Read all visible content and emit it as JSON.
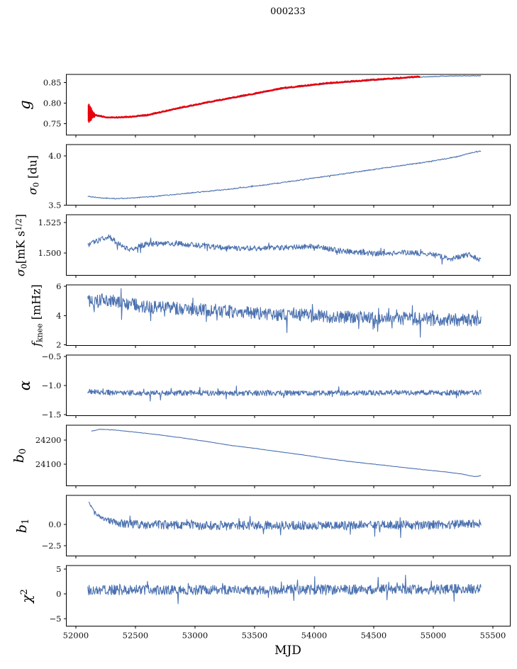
{
  "chart_data": {
    "type": "line",
    "title": "000233",
    "xlabel": "MJD",
    "xlim": [
      51920,
      55646
    ],
    "xticks": [
      52000,
      52500,
      53000,
      53500,
      54000,
      54500,
      55000,
      55500
    ],
    "xtick_labels": [
      "52000",
      "52500",
      "53000",
      "53500",
      "54000",
      "54500",
      "55000",
      "55500"
    ],
    "colors": {
      "blue": "#4c72b0",
      "red": "#e8000b",
      "spine": "#000000",
      "text": "#111111"
    },
    "panels": [
      {
        "id": "g",
        "ylabel_segments": [
          {
            "t": "g",
            "italic": true
          }
        ],
        "ylabel_x": 35,
        "ylabel_size": 21,
        "ylim": [
          0.722,
          0.8695
        ],
        "yticks": [
          {
            "v": 0.75,
            "label": "0.75"
          },
          {
            "v": 0.8,
            "label": "0.80"
          },
          {
            "v": 0.85,
            "label": "0.85"
          }
        ],
        "series": [
          {
            "name": "g-fit-line",
            "color": "#4c72b0",
            "width": 1.2,
            "n": 600,
            "seed": 11,
            "x_start": 52100,
            "x_end": 55400,
            "noise_amp": 0.0007,
            "tail_prob": 0,
            "anchors": [
              [
                52100,
                0.7755
              ],
              [
                52170,
                0.7685
              ],
              [
                52250,
                0.764
              ],
              [
                52330,
                0.7635
              ],
              [
                52450,
                0.765
              ],
              [
                52600,
                0.769
              ],
              [
                52850,
                0.7855
              ],
              [
                53100,
                0.8
              ],
              [
                53390,
                0.8155
              ],
              [
                53745,
                0.835
              ],
              [
                54100,
                0.8465
              ],
              [
                54520,
                0.8555
              ],
              [
                54890,
                0.863
              ],
              [
                55100,
                0.8655
              ],
              [
                55250,
                0.866
              ],
              [
                55400,
                0.8663
              ]
            ]
          },
          {
            "name": "g-measured-line",
            "color": "#e8000b",
            "width": 2.4,
            "n": 460,
            "seed": 12,
            "x_start": 52105,
            "x_end": 54890,
            "noise_amp": 0.0012,
            "tail_prob": 0,
            "anchors": [
              [
                52105,
                0.776
              ],
              [
                52170,
                0.77
              ],
              [
                52250,
                0.7655
              ],
              [
                52330,
                0.765
              ],
              [
                52450,
                0.7665
              ],
              [
                52600,
                0.7705
              ],
              [
                52850,
                0.787
              ],
              [
                53100,
                0.8015
              ],
              [
                53390,
                0.817
              ],
              [
                53745,
                0.8365
              ],
              [
                54100,
                0.848
              ],
              [
                54520,
                0.857
              ],
              [
                54890,
                0.8642
              ]
            ]
          }
        ],
        "errorbars": [
          {
            "x": 52106,
            "y": 0.7755,
            "e": 0.02
          },
          {
            "x": 52110,
            "y": 0.775,
            "e": 0.023
          },
          {
            "x": 52114,
            "y": 0.7745,
            "e": 0.016
          },
          {
            "x": 52119,
            "y": 0.774,
            "e": 0.019
          },
          {
            "x": 52124,
            "y": 0.7735,
            "e": 0.013
          },
          {
            "x": 52129,
            "y": 0.773,
            "e": 0.016
          },
          {
            "x": 52134,
            "y": 0.7725,
            "e": 0.011
          },
          {
            "x": 52140,
            "y": 0.772,
            "e": 0.009
          },
          {
            "x": 52147,
            "y": 0.771,
            "e": 0.007
          },
          {
            "x": 52155,
            "y": 0.77,
            "e": 0.006
          }
        ]
      },
      {
        "id": "sigma0-du",
        "ylabel_segments": [
          {
            "t": "σ",
            "italic": true
          },
          {
            "t": "0",
            "script": "sub"
          },
          {
            "t": " [du]"
          }
        ],
        "ylabel_x": 47,
        "ylabel_size": 16,
        "ylim": [
          3.5,
          4.115
        ],
        "yticks": [
          {
            "v": 3.5,
            "label": "3.5"
          },
          {
            "v": 4.0,
            "label": "4.0"
          }
        ],
        "series": [
          {
            "name": "sigma0-du-line",
            "color": "#4c72b0",
            "width": 1.1,
            "n": 700,
            "seed": 21,
            "x_start": 52100,
            "x_end": 55400,
            "noise_amp": 0.005,
            "tail_prob": 0.02,
            "anchors": [
              [
                52100,
                3.59
              ],
              [
                52200,
                3.575
              ],
              [
                52330,
                3.567
              ],
              [
                52500,
                3.574
              ],
              [
                52700,
                3.594
              ],
              [
                52900,
                3.617
              ],
              [
                53100,
                3.64
              ],
              [
                53300,
                3.664
              ],
              [
                53500,
                3.692
              ],
              [
                53700,
                3.724
              ],
              [
                53900,
                3.758
              ],
              [
                54100,
                3.792
              ],
              [
                54300,
                3.827
              ],
              [
                54500,
                3.862
              ],
              [
                54700,
                3.897
              ],
              [
                54900,
                3.93
              ],
              [
                55050,
                3.96
              ],
              [
                55200,
                3.992
              ],
              [
                55300,
                4.025
              ],
              [
                55400,
                4.05
              ]
            ]
          }
        ]
      },
      {
        "id": "sigma0-mks",
        "ylabel_segments": [
          {
            "t": "σ",
            "italic": true
          },
          {
            "t": "0",
            "script": "sub"
          },
          {
            "t": "[mK s"
          },
          {
            "t": "1/2",
            "script": "sup"
          },
          {
            "t": "]"
          }
        ],
        "ylabel_x": 30,
        "ylabel_size": 16,
        "ylim": [
          1.4817,
          1.5314
        ],
        "yticks": [
          {
            "v": 1.5,
            "label": "1.500"
          },
          {
            "v": 1.525,
            "label": "1.525"
          }
        ],
        "series": [
          {
            "name": "sigma0-mks-line",
            "color": "#4c72b0",
            "width": 1.1,
            "n": 850,
            "seed": 31,
            "x_start": 52100,
            "x_end": 55400,
            "noise_amp": 0.0022,
            "tail_prob": 0.03,
            "anchors": [
              [
                52100,
                1.5065
              ],
              [
                52200,
                1.511
              ],
              [
                52280,
                1.5135
              ],
              [
                52350,
                1.508
              ],
              [
                52450,
                1.503
              ],
              [
                52600,
                1.5075
              ],
              [
                52800,
                1.508
              ],
              [
                53000,
                1.5065
              ],
              [
                53200,
                1.5045
              ],
              [
                53500,
                1.5035
              ],
              [
                53800,
                1.5045
              ],
              [
                54000,
                1.5055
              ],
              [
                54200,
                1.502
              ],
              [
                54500,
                1.4995
              ],
              [
                54800,
                1.5005
              ],
              [
                55000,
                1.4985
              ],
              [
                55150,
                1.4955
              ],
              [
                55300,
                1.4985
              ],
              [
                55400,
                1.4935
              ]
            ]
          }
        ]
      },
      {
        "id": "fknee",
        "ylabel_segments": [
          {
            "t": "f",
            "italic": true
          },
          {
            "t": "knee",
            "script": "sub"
          },
          {
            "t": " [mHz]"
          }
        ],
        "ylabel_x": 52,
        "ylabel_size": 16,
        "ylim": [
          1.95,
          6.1
        ],
        "yticks": [
          {
            "v": 2,
            "label": "2"
          },
          {
            "v": 4,
            "label": "4"
          },
          {
            "v": 6,
            "label": "6"
          }
        ],
        "series": [
          {
            "name": "fknee-line",
            "color": "#4c72b0",
            "width": 1.1,
            "n": 850,
            "seed": 41,
            "x_start": 52100,
            "x_end": 55400,
            "noise_amp": 0.45,
            "tail_prob": 0.04,
            "anchors": [
              [
                52100,
                5.0
              ],
              [
                52250,
                5.1
              ],
              [
                52400,
                4.85
              ],
              [
                52600,
                4.6
              ],
              [
                52900,
                4.45
              ],
              [
                53200,
                4.3
              ],
              [
                53500,
                4.15
              ],
              [
                53800,
                4.05
              ],
              [
                54100,
                3.95
              ],
              [
                54400,
                3.85
              ],
              [
                54700,
                3.8
              ],
              [
                55000,
                3.75
              ],
              [
                55200,
                3.7
              ],
              [
                55400,
                3.65
              ]
            ]
          }
        ]
      },
      {
        "id": "alpha",
        "ylabel_segments": [
          {
            "t": "α",
            "italic": true
          }
        ],
        "ylabel_x": 35,
        "ylabel_size": 21,
        "ylim": [
          -1.52,
          -0.475
        ],
        "yticks": [
          {
            "v": -0.5,
            "label": "−0.5"
          },
          {
            "v": -1.0,
            "label": "−1.0"
          },
          {
            "v": -1.5,
            "label": "−1.5"
          }
        ],
        "series": [
          {
            "name": "alpha-line",
            "color": "#4c72b0",
            "width": 1.1,
            "n": 850,
            "seed": 51,
            "x_start": 52100,
            "x_end": 55400,
            "noise_amp": 0.046,
            "tail_prob": 0.03,
            "anchors": [
              [
                52100,
                -1.1
              ],
              [
                52300,
                -1.125
              ],
              [
                52600,
                -1.13
              ],
              [
                53000,
                -1.128
              ],
              [
                53500,
                -1.132
              ],
              [
                54000,
                -1.13
              ],
              [
                54500,
                -1.128
              ],
              [
                55000,
                -1.125
              ],
              [
                55400,
                -1.12
              ]
            ]
          }
        ]
      },
      {
        "id": "b0",
        "ylabel_segments": [
          {
            "t": "b",
            "italic": true
          },
          {
            "t": "0",
            "script": "sub"
          }
        ],
        "ylabel_x": 28,
        "ylabel_size": 19,
        "ylim": [
          24010,
          24262
        ],
        "yticks": [
          {
            "v": 24100,
            "label": "24100"
          },
          {
            "v": 24200,
            "label": "24200"
          }
        ],
        "series": [
          {
            "name": "b0-line",
            "color": "#4c72b0",
            "width": 1.1,
            "n": 500,
            "seed": 61,
            "x_start": 52130,
            "x_end": 55400,
            "noise_amp": 0.8,
            "tail_prob": 0,
            "anchors": [
              [
                52130,
                24237
              ],
              [
                52200,
                24245
              ],
              [
                52330,
                24242
              ],
              [
                52500,
                24233
              ],
              [
                52700,
                24222
              ],
              [
                52900,
                24209
              ],
              [
                53100,
                24194
              ],
              [
                53300,
                24178
              ],
              [
                53500,
                24166
              ],
              [
                53700,
                24152
              ],
              [
                53900,
                24139
              ],
              [
                54100,
                24124
              ],
              [
                54300,
                24111
              ],
              [
                54500,
                24100
              ],
              [
                54700,
                24089
              ],
              [
                54900,
                24078
              ],
              [
                55100,
                24068
              ],
              [
                55250,
                24058
              ],
              [
                55350,
                24048
              ],
              [
                55400,
                24052
              ]
            ]
          }
        ]
      },
      {
        "id": "b1",
        "ylabel_segments": [
          {
            "t": "b",
            "italic": true
          },
          {
            "t": "1",
            "script": "sub"
          }
        ],
        "ylabel_x": 32,
        "ylabel_size": 19,
        "ylim": [
          -3.7,
          3.42
        ],
        "yticks": [
          {
            "v": 0.0,
            "label": "0.0"
          },
          {
            "v": -2.5,
            "label": "−2.5"
          }
        ],
        "series": [
          {
            "name": "b1-line",
            "color": "#4c72b0",
            "width": 1.1,
            "n": 850,
            "seed": 71,
            "x_start": 52110,
            "x_end": 55400,
            "noise_amp": 0.52,
            "tail_prob": 0.035,
            "amp_ramp": [
              52110,
              52420,
              0.25
            ],
            "anchors": [
              [
                52110,
                2.6
              ],
              [
                52140,
                1.8
              ],
              [
                52180,
                1.1
              ],
              [
                52250,
                0.55
              ],
              [
                52350,
                0.2
              ],
              [
                52500,
                0.0
              ],
              [
                53000,
                -0.1
              ],
              [
                54000,
                -0.1
              ],
              [
                55000,
                -0.05
              ],
              [
                55400,
                0.1
              ]
            ]
          }
        ]
      },
      {
        "id": "chi2",
        "ylabel_segments": [
          {
            "t": "χ",
            "italic": true
          },
          {
            "t": "2",
            "script": "sup"
          }
        ],
        "ylabel_x": 38,
        "ylabel_size": 19,
        "ylim": [
          -6.5,
          5.71
        ],
        "yticks": [
          {
            "v": 5,
            "label": "5"
          },
          {
            "v": 0,
            "label": "0"
          },
          {
            "v": -5,
            "label": "−5"
          }
        ],
        "series": [
          {
            "name": "chi2-line",
            "color": "#4c72b0",
            "width": 1.1,
            "n": 850,
            "seed": 81,
            "x_start": 52100,
            "x_end": 55400,
            "noise_amp": 1.0,
            "tail_prob": 0.04,
            "anchors": [
              [
                52100,
                0.8
              ],
              [
                53000,
                0.75
              ],
              [
                54000,
                0.85
              ],
              [
                55000,
                0.9
              ],
              [
                55400,
                1.0
              ]
            ]
          }
        ]
      }
    ]
  }
}
